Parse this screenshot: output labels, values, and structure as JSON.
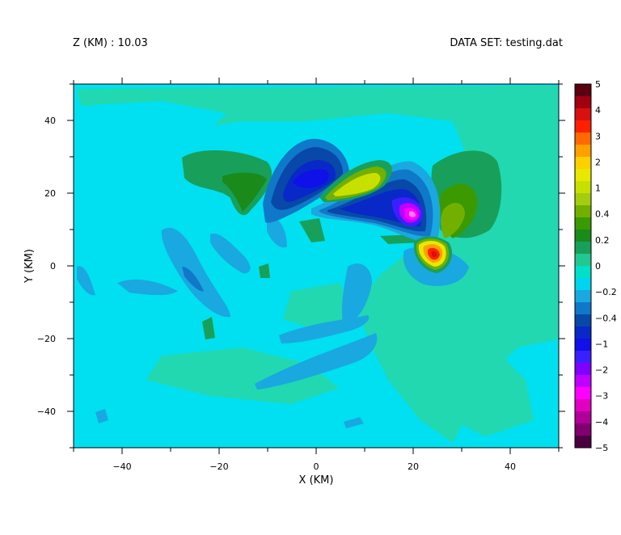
{
  "header": {
    "z_label": "Z (KM) : 10.03",
    "dataset_label": "DATA SET: testing.dat"
  },
  "chart_data": {
    "type": "heatmap",
    "title": "",
    "xlabel": "X (KM)",
    "ylabel": "Y (KM)",
    "xlim": [
      -50,
      50
    ],
    "ylim": [
      -50,
      50
    ],
    "x_ticks": [
      -40,
      -20,
      0,
      20,
      40
    ],
    "y_ticks": [
      -40,
      -20,
      0,
      20,
      40
    ],
    "colorbar": {
      "levels": [
        "5",
        "4",
        "3",
        "2",
        "1",
        "0.4",
        "0.2",
        "0",
        "-0.2",
        "-0.4",
        "-1",
        "-2",
        "-3",
        "-4",
        "-5"
      ],
      "colors": [
        "#5a0010",
        "#a00010",
        "#d81010",
        "#ff2000",
        "#ff6a00",
        "#ffa000",
        "#ffd000",
        "#e8e800",
        "#c8e000",
        "#a6cc10",
        "#72b000",
        "#3a9a00",
        "#1a8a1a",
        "#18a05a",
        "#22c890",
        "#00e0c8",
        "#00d4f0",
        "#1aa8e0",
        "#1078c8",
        "#0848a8",
        "#0828c8",
        "#1010e8",
        "#3a20ff",
        "#8000ff",
        "#c000ff",
        "#ff00ff",
        "#e000c0",
        "#b00098",
        "#800070",
        "#4a0040"
      ]
    },
    "field": {
      "background_color": "#00e0f0",
      "features": [
        {
          "x": 0,
          "y": 24,
          "value": -1.0
        },
        {
          "x": 20,
          "y": 14,
          "value": -2.5
        },
        {
          "x": 10,
          "y": 22,
          "value": 1.2
        },
        {
          "x": 25,
          "y": 3,
          "value": 4.5
        },
        {
          "x": -16,
          "y": 24,
          "value": 0.3
        },
        {
          "x": 30,
          "y": 28,
          "value": 0.2
        },
        {
          "x": 16,
          "y": -30,
          "value": 0.1
        },
        {
          "x": 10,
          "y": -24,
          "value": -0.15
        },
        {
          "x": -30,
          "y": -4,
          "value": -0.2
        },
        {
          "x": -40,
          "y": -30,
          "value": 0.1
        }
      ]
    }
  }
}
